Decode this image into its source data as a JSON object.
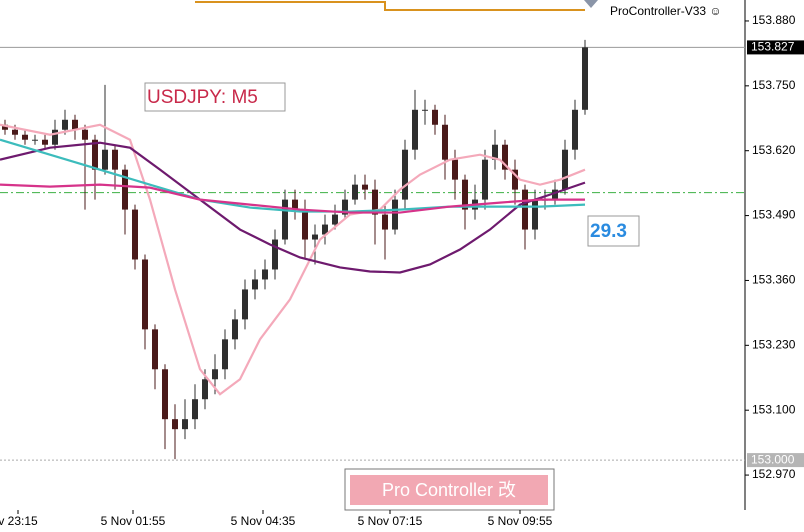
{
  "chart_data": {
    "type": "candlestick",
    "title": "USDJPY: M5",
    "indicator_name": "ProController-V33 ☺",
    "indicator_value": "29.3",
    "button_label": "Pro Controller 改",
    "up_color": "#2f2f2f",
    "down_color": "#4a1a1a",
    "xlim": [
      -0.5,
      74
    ],
    "ylim": [
      152.9,
      153.922
    ],
    "xticks": [
      {
        "value": 1.3,
        "label": "v 23:15"
      },
      {
        "value": 12.8,
        "label": "5 Nov 01:55"
      },
      {
        "value": 25.8,
        "label": "5 Nov 04:35"
      },
      {
        "value": 38.5,
        "label": "5 Nov 07:15"
      },
      {
        "value": 51.5,
        "label": "5 Nov 09:55"
      }
    ],
    "yticks": [
      {
        "value": 153.88,
        "label": "153.880"
      },
      {
        "value": 153.75,
        "label": "153.750"
      },
      {
        "value": 153.62,
        "label": "153.620"
      },
      {
        "value": 153.49,
        "label": "153.490"
      },
      {
        "value": 153.36,
        "label": "153.360"
      },
      {
        "value": 153.23,
        "label": "153.230"
      },
      {
        "value": 153.1,
        "label": "153.100"
      },
      {
        "value": 152.97,
        "label": "152.970"
      }
    ],
    "current_price": 153.827,
    "level_price": {
      "value": 153,
      "label": "153.000"
    },
    "signal_level": 153.536,
    "open": [
      153.672,
      153.662,
      153.652,
      153.642,
      153.642,
      153.632,
      153.662,
      153.682,
      153.662,
      153.642,
      153.582,
      153.622,
      153.582,
      153.502,
      153.402,
      153.262,
      153.182,
      153.082,
      153.062,
      153.082,
      153.122,
      153.162,
      153.182,
      153.242,
      153.282,
      153.342,
      153.362,
      153.382,
      153.442,
      153.522,
      153.502,
      153.442,
      153.452,
      153.472,
      153.492,
      153.522,
      153.552,
      153.542,
      153.492,
      153.462,
      153.522,
      153.622,
      153.702,
      153.702,
      153.672,
      153.602,
      153.562,
      153.502,
      153.522,
      153.602,
      153.632,
      153.582,
      153.542,
      153.462,
      153.522,
      153.522,
      153.542,
      153.622,
      153.702
    ],
    "high": [
      153.682,
      153.672,
      153.662,
      153.652,
      153.652,
      153.682,
      153.702,
      153.692,
      153.672,
      153.652,
      153.752,
      153.632,
      153.592,
      153.512,
      153.412,
      153.272,
      153.192,
      153.112,
      153.122,
      153.152,
      153.182,
      153.212,
      153.262,
      153.302,
      153.362,
      153.382,
      153.402,
      153.462,
      153.542,
      153.542,
      153.522,
      153.472,
      153.492,
      153.512,
      153.542,
      153.572,
      153.572,
      153.562,
      153.512,
      153.542,
      153.642,
      153.742,
      153.722,
      153.712,
      153.692,
      153.622,
      153.572,
      153.552,
      153.622,
      153.662,
      153.642,
      153.602,
      153.552,
      153.542,
      153.542,
      153.562,
      153.642,
      153.722,
      153.842
    ],
    "low": [
      153.652,
      153.642,
      153.632,
      153.632,
      153.622,
      153.622,
      153.652,
      153.642,
      153.502,
      153.522,
      153.572,
      153.542,
      153.452,
      153.382,
      153.222,
      153.142,
      153.022,
      153.002,
      153.042,
      153.062,
      153.102,
      153.132,
      153.162,
      153.222,
      153.262,
      153.322,
      153.342,
      153.362,
      153.432,
      153.482,
      153.402,
      153.392,
      153.432,
      153.462,
      153.482,
      153.512,
      153.522,
      153.432,
      153.402,
      153.452,
      153.502,
      153.602,
      153.672,
      153.652,
      153.562,
      153.522,
      153.462,
      153.482,
      153.502,
      153.582,
      153.562,
      153.512,
      153.422,
      153.442,
      153.502,
      153.512,
      153.532,
      153.602,
      153.692
    ],
    "close": [
      153.662,
      153.652,
      153.642,
      153.642,
      153.632,
      153.662,
      153.682,
      153.662,
      153.642,
      153.582,
      153.622,
      153.582,
      153.502,
      153.402,
      153.262,
      153.182,
      153.082,
      153.062,
      153.082,
      153.122,
      153.162,
      153.182,
      153.242,
      153.282,
      153.342,
      153.362,
      153.382,
      153.442,
      153.522,
      153.502,
      153.442,
      153.452,
      153.472,
      153.492,
      153.522,
      153.552,
      153.542,
      153.492,
      153.462,
      153.522,
      153.622,
      153.702,
      153.702,
      153.672,
      153.602,
      153.562,
      153.502,
      153.522,
      153.602,
      153.632,
      153.582,
      153.542,
      153.462,
      153.522,
      153.522,
      153.542,
      153.622,
      153.702,
      153.827
    ],
    "series": [
      {
        "color": "#f4a9ba",
        "x": [
          -0.5,
          4.5,
          9.5,
          12.5,
          14.5,
          17,
          19.5,
          21.5,
          23.5,
          25.5,
          28.5,
          31.5,
          34.5,
          37.5,
          39.5,
          41.5,
          44.5,
          47.5,
          49.5,
          51.5,
          53.5,
          55.5,
          58
        ],
        "values": [
          153.672,
          153.652,
          153.672,
          153.642,
          153.522,
          153.342,
          153.182,
          153.132,
          153.162,
          153.242,
          153.322,
          153.442,
          153.492,
          153.502,
          153.542,
          153.572,
          153.602,
          153.612,
          153.602,
          153.562,
          153.552,
          153.562,
          153.582
        ]
      },
      {
        "color": "#6e1a6e",
        "x": [
          -0.5,
          4.5,
          9.5,
          12.5,
          15.5,
          19.5,
          23.5,
          26.5,
          29.5,
          33.5,
          36.5,
          39.5,
          42.5,
          45.5,
          48.5,
          51.5,
          54.5,
          58
        ],
        "values": [
          153.602,
          153.626,
          153.636,
          153.626,
          153.582,
          153.522,
          153.462,
          153.432,
          153.406,
          153.386,
          153.378,
          153.376,
          153.392,
          153.422,
          153.462,
          153.512,
          153.532,
          153.556
        ]
      },
      {
        "color": "#3cbcbc",
        "x": [
          -0.5,
          4.5,
          9.5,
          14.5,
          19.5,
          24.5,
          29.5,
          34.5,
          39.5,
          44.5,
          49.5,
          53.5,
          58
        ],
        "values": [
          153.642,
          153.612,
          153.582,
          153.552,
          153.522,
          153.506,
          153.498,
          153.498,
          153.502,
          153.508,
          153.508,
          153.508,
          153.512
        ]
      },
      {
        "color": "#d6338a",
        "x": [
          -0.5,
          4.5,
          9.5,
          14.5,
          19.5,
          24.5,
          29.5,
          34.5,
          39.5,
          44.5,
          49.5,
          53.5,
          58
        ],
        "values": [
          153.552,
          153.548,
          153.552,
          153.546,
          153.522,
          153.512,
          153.502,
          153.496,
          153.496,
          153.508,
          153.516,
          153.522,
          153.522
        ]
      }
    ]
  }
}
